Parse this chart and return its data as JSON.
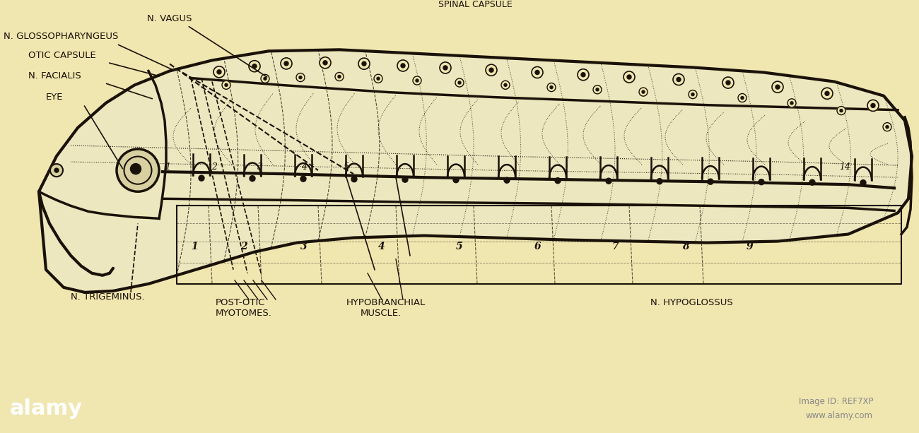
{
  "bg_color": "#f0e6b0",
  "lc": "#1a1208",
  "fig_w": 13.0,
  "fig_h": 6.13,
  "bar_color": "#111111",
  "labels": {
    "n_vagus": "N. VAGUS",
    "n_glosso": "N. GLOSSOPHARYNGEUS",
    "otic_cap": "OTIC CAPSULE",
    "n_facialis": "N. FACIALIS",
    "eye": "EYE",
    "n_trigeminus": "N. TRIGEMINUS.",
    "post_otic": "POST-OTIC",
    "myotomes": "MYOTOMES.",
    "hypobranchial": "HYPOBRANCHIAL",
    "muscle": "MUSCLE.",
    "n_hypoglossus": "N. HYPOGLOSSUS",
    "spinal": "SPINAL CAPSULE",
    "alamy_id": "Image ID: REF7XP",
    "alamy_url": "www.alamy.com",
    "alamy_logo": "alamy"
  }
}
